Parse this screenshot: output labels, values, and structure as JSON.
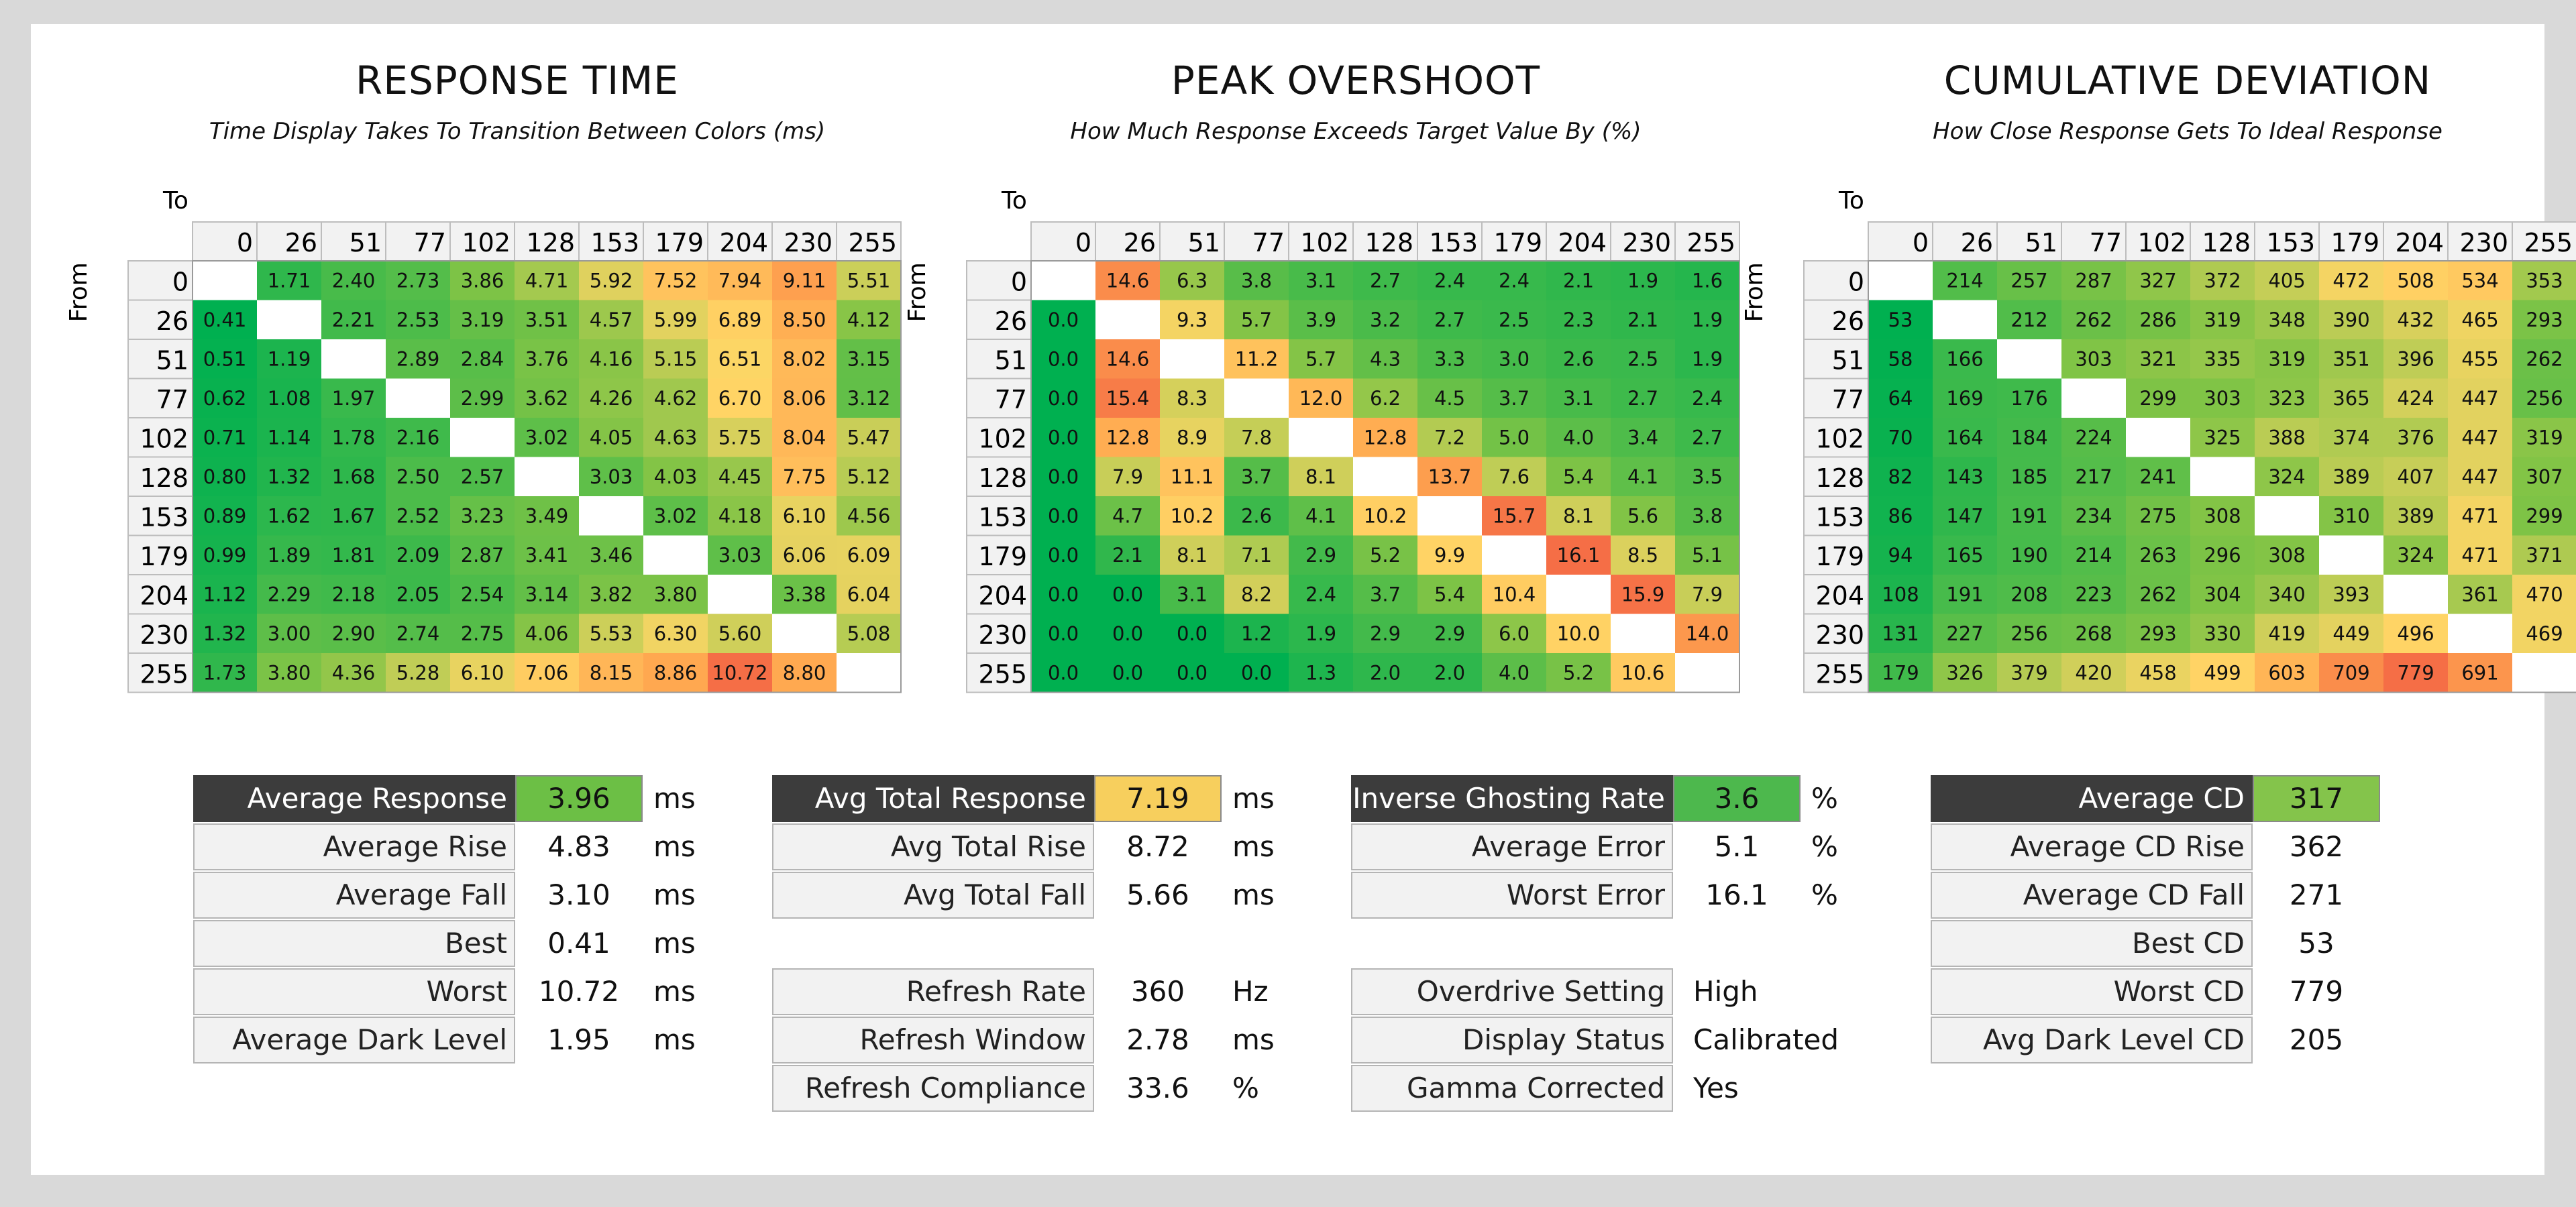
{
  "levels": [
    "0",
    "26",
    "51",
    "77",
    "102",
    "128",
    "153",
    "179",
    "204",
    "230",
    "255"
  ],
  "axis": {
    "to": "To",
    "from": "From"
  },
  "chart_data": [
    {
      "type": "heatmap",
      "title": "RESPONSE TIME",
      "subtitle": "Time Display Takes To Transition Between Colors (ms)",
      "x_label": "To",
      "y_label": "From",
      "decimals": 2,
      "color_range": [
        0.4,
        10.7
      ],
      "rows": [
        [
          null,
          1.71,
          2.4,
          2.73,
          3.86,
          4.71,
          5.92,
          7.52,
          7.94,
          9.11,
          5.51
        ],
        [
          0.41,
          null,
          2.21,
          2.53,
          3.19,
          3.51,
          4.57,
          5.99,
          6.89,
          8.5,
          4.12
        ],
        [
          0.51,
          1.19,
          null,
          2.89,
          2.84,
          3.76,
          4.16,
          5.15,
          6.51,
          8.02,
          3.15
        ],
        [
          0.62,
          1.08,
          1.97,
          null,
          2.99,
          3.62,
          4.26,
          4.62,
          6.7,
          8.06,
          3.12
        ],
        [
          0.71,
          1.14,
          1.78,
          2.16,
          null,
          3.02,
          4.05,
          4.63,
          5.75,
          8.04,
          5.47
        ],
        [
          0.8,
          1.32,
          1.68,
          2.5,
          2.57,
          null,
          3.03,
          4.03,
          4.45,
          7.75,
          5.12
        ],
        [
          0.89,
          1.62,
          1.67,
          2.52,
          3.23,
          3.49,
          null,
          3.02,
          4.18,
          6.1,
          4.56
        ],
        [
          0.99,
          1.89,
          1.81,
          2.09,
          2.87,
          3.41,
          3.46,
          null,
          3.03,
          6.06,
          6.09
        ],
        [
          1.12,
          2.29,
          2.18,
          2.05,
          2.54,
          3.14,
          3.82,
          3.8,
          null,
          3.38,
          6.04
        ],
        [
          1.32,
          3.0,
          2.9,
          2.74,
          2.75,
          4.06,
          5.53,
          6.3,
          5.6,
          null,
          5.08
        ],
        [
          1.73,
          3.8,
          4.36,
          5.28,
          6.1,
          7.06,
          8.15,
          8.86,
          10.72,
          8.8,
          null
        ]
      ]
    },
    {
      "type": "heatmap",
      "title": "PEAK OVERSHOOT",
      "subtitle": "How Much Response Exceeds Target Value By (%)",
      "x_label": "To",
      "y_label": "From",
      "decimals": 1,
      "color_range": [
        0,
        16.1
      ],
      "rows": [
        [
          null,
          14.6,
          6.3,
          3.8,
          3.1,
          2.7,
          2.4,
          2.4,
          2.1,
          1.9,
          1.6
        ],
        [
          0.0,
          null,
          9.3,
          5.7,
          3.9,
          3.2,
          2.7,
          2.5,
          2.3,
          2.1,
          1.9
        ],
        [
          0.0,
          14.6,
          null,
          11.2,
          5.7,
          4.3,
          3.3,
          3.0,
          2.6,
          2.5,
          1.9
        ],
        [
          0.0,
          15.4,
          8.3,
          null,
          12.0,
          6.2,
          4.5,
          3.7,
          3.1,
          2.7,
          2.4
        ],
        [
          0.0,
          12.8,
          8.9,
          7.8,
          null,
          12.8,
          7.2,
          5.0,
          4.0,
          3.4,
          2.7
        ],
        [
          0.0,
          7.9,
          11.1,
          3.7,
          8.1,
          null,
          13.7,
          7.6,
          5.4,
          4.1,
          3.5
        ],
        [
          0.0,
          4.7,
          10.2,
          2.6,
          4.1,
          10.2,
          null,
          15.7,
          8.1,
          5.6,
          3.8
        ],
        [
          0.0,
          2.1,
          8.1,
          7.1,
          2.9,
          5.2,
          9.9,
          null,
          16.1,
          8.5,
          5.1
        ],
        [
          0.0,
          0.0,
          3.1,
          8.2,
          2.4,
          3.7,
          5.4,
          10.4,
          null,
          15.9,
          7.9
        ],
        [
          0.0,
          0.0,
          0.0,
          1.2,
          1.9,
          2.9,
          2.9,
          6.0,
          10.0,
          null,
          14.0
        ],
        [
          0.0,
          0.0,
          0.0,
          0.0,
          1.3,
          2.0,
          2.0,
          4.0,
          5.2,
          10.6,
          null
        ]
      ]
    },
    {
      "type": "heatmap",
      "title": "CUMULATIVE DEVIATION",
      "subtitle": "How Close Response Gets To Ideal Response",
      "x_label": "To",
      "y_label": "From",
      "decimals": 0,
      "color_range": [
        53,
        779
      ],
      "rows": [
        [
          null,
          214,
          257,
          287,
          327,
          372,
          405,
          472,
          508,
          534,
          353
        ],
        [
          53,
          null,
          212,
          262,
          286,
          319,
          348,
          390,
          432,
          465,
          293
        ],
        [
          58,
          166,
          null,
          303,
          321,
          335,
          319,
          351,
          396,
          455,
          262
        ],
        [
          64,
          169,
          176,
          null,
          299,
          303,
          323,
          365,
          424,
          447,
          256
        ],
        [
          70,
          164,
          184,
          224,
          null,
          325,
          388,
          374,
          376,
          447,
          319
        ],
        [
          82,
          143,
          185,
          217,
          241,
          null,
          324,
          389,
          407,
          447,
          307
        ],
        [
          86,
          147,
          191,
          234,
          275,
          308,
          null,
          310,
          389,
          471,
          299
        ],
        [
          94,
          165,
          190,
          214,
          263,
          296,
          308,
          null,
          324,
          471,
          371
        ],
        [
          108,
          191,
          208,
          223,
          262,
          304,
          340,
          393,
          null,
          361,
          470
        ],
        [
          131,
          227,
          256,
          268,
          293,
          330,
          419,
          449,
          496,
          null,
          469
        ],
        [
          179,
          326,
          379,
          420,
          458,
          499,
          603,
          709,
          779,
          691,
          null
        ]
      ]
    }
  ],
  "stats": {
    "response": {
      "header": {
        "label": "Average Response",
        "value": "3.96",
        "unit": "ms",
        "color": "#6cbf45"
      },
      "rows": [
        {
          "label": "Average Rise",
          "value": "4.83",
          "unit": "ms"
        },
        {
          "label": "Average Fall",
          "value": "3.10",
          "unit": "ms"
        },
        {
          "label": "Best",
          "value": "0.41",
          "unit": "ms"
        },
        {
          "label": "Worst",
          "value": "10.72",
          "unit": "ms"
        },
        {
          "label": "Average Dark Level",
          "value": "1.95",
          "unit": "ms"
        }
      ]
    },
    "total": {
      "header": {
        "label": "Avg Total Response",
        "value": "7.19",
        "unit": "ms",
        "color": "#f7cf5d"
      },
      "rows": [
        {
          "label": "Avg Total Rise",
          "value": "8.72",
          "unit": "ms"
        },
        {
          "label": "Avg Total Fall",
          "value": "5.66",
          "unit": "ms"
        }
      ],
      "refresh": [
        {
          "label": "Refresh Rate",
          "value": "360",
          "unit": "Hz"
        },
        {
          "label": "Refresh Window",
          "value": "2.78",
          "unit": "ms"
        },
        {
          "label": "Refresh Compliance",
          "value": "33.6",
          "unit": "%"
        }
      ]
    },
    "ghosting": {
      "header": {
        "label": "Inverse Ghosting Rate",
        "value": "3.6",
        "unit": "%",
        "color": "#4db84d"
      },
      "rows": [
        {
          "label": "Average Error",
          "value": "5.1",
          "unit": "%"
        },
        {
          "label": "Worst Error",
          "value": "16.1",
          "unit": "%"
        }
      ],
      "settings": [
        {
          "label": "Overdrive Setting",
          "value": "High"
        },
        {
          "label": "Display Status",
          "value": "Calibrated"
        },
        {
          "label": "Gamma Corrected",
          "value": "Yes"
        }
      ]
    },
    "cd": {
      "header": {
        "label": "Average CD",
        "value": "317",
        "color": "#84c44b"
      },
      "rows": [
        {
          "label": "Average CD Rise",
          "value": "362"
        },
        {
          "label": "Average CD Fall",
          "value": "271"
        },
        {
          "label": "Best CD",
          "value": "53"
        },
        {
          "label": "Worst CD",
          "value": "779"
        },
        {
          "label": "Avg Dark Level CD",
          "value": "205"
        }
      ]
    }
  }
}
